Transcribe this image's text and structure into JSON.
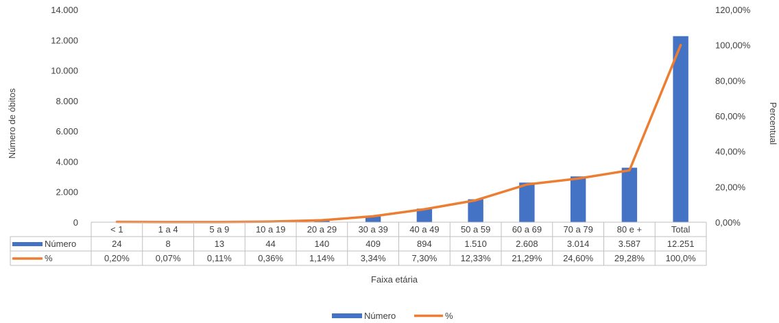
{
  "chart_data": {
    "type": "bar",
    "title": "",
    "xlabel": "Faixa etária",
    "ylabel": "Número de óbitos",
    "y2label": "Percentual",
    "categories": [
      "< 1",
      "1 a 4",
      "5 a 9",
      "10 a 19",
      "20 a 29",
      "30 a 39",
      "40 a 49",
      "50 a 59",
      "60 a 69",
      "70 a 79",
      "80 e +",
      "Total"
    ],
    "ylim": [
      0,
      14000
    ],
    "y2lim": [
      0,
      120
    ],
    "yticks": [
      "0",
      "2.000",
      "4.000",
      "6.000",
      "8.000",
      "10.000",
      "12.000",
      "14.000"
    ],
    "y2ticks": [
      "0,00%",
      "20,00%",
      "40,00%",
      "60,00%",
      "80,00%",
      "100,00%",
      "120,00%"
    ],
    "series": [
      {
        "name": "Número",
        "type": "bar",
        "axis": "left",
        "color": "#4472C4",
        "values": [
          24,
          8,
          13,
          44,
          140,
          409,
          894,
          1510,
          2608,
          3014,
          3587,
          12251
        ],
        "labels": [
          "24",
          "8",
          "13",
          "44",
          "140",
          "409",
          "894",
          "1.510",
          "2.608",
          "3.014",
          "3.587",
          "12.251"
        ]
      },
      {
        "name": "%",
        "type": "line",
        "axis": "right",
        "color": "#ED7D31",
        "values": [
          0.2,
          0.07,
          0.11,
          0.36,
          1.14,
          3.34,
          7.3,
          12.33,
          21.29,
          24.6,
          29.28,
          100.0
        ],
        "labels": [
          "0,20%",
          "0,07%",
          "0,11%",
          "0,36%",
          "1,14%",
          "3,34%",
          "7,30%",
          "12,33%",
          "21,29%",
          "24,60%",
          "29,28%",
          "100,0%"
        ]
      }
    ],
    "grid": false,
    "legend": "bottom",
    "data_table": true
  }
}
